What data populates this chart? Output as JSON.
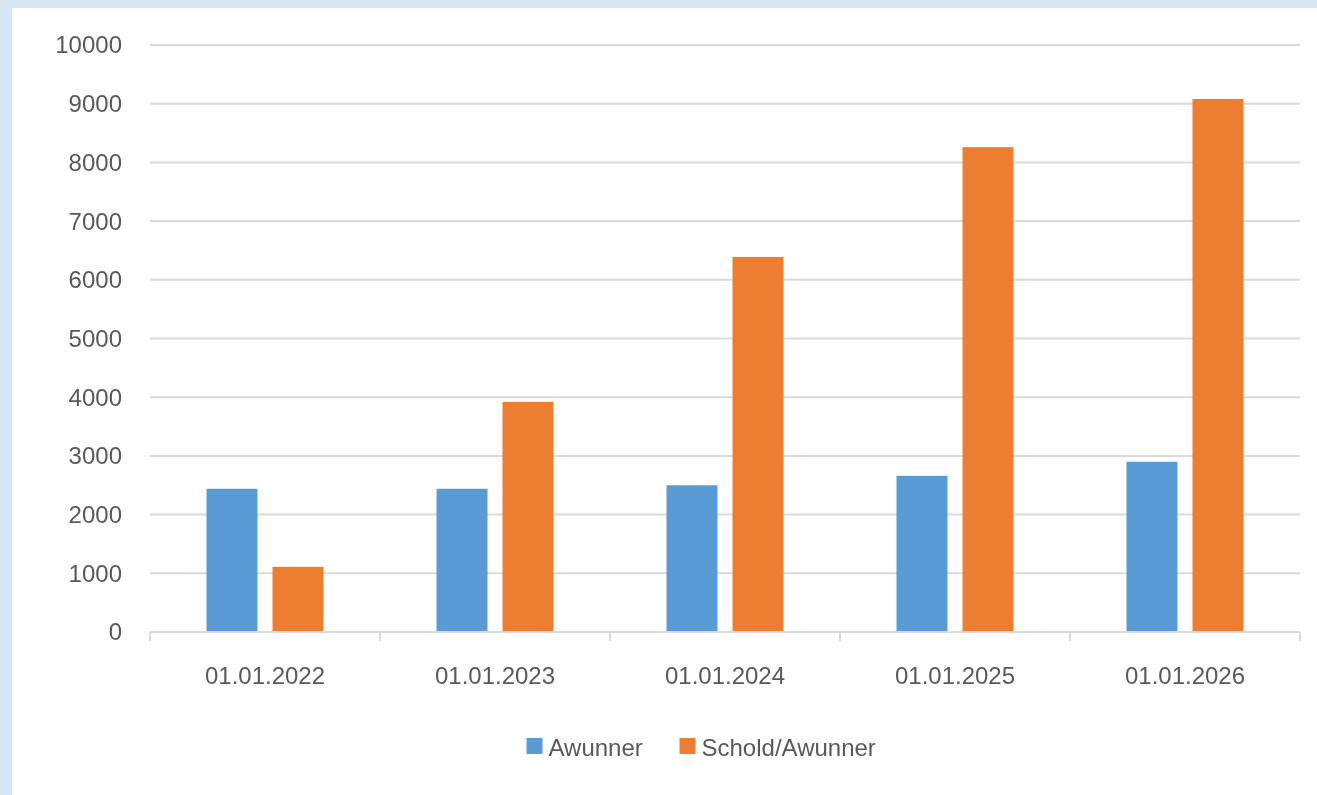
{
  "chart_data": {
    "type": "bar",
    "categories": [
      "01.01.2022",
      "01.01.2023",
      "01.01.2024",
      "01.01.2025",
      "01.01.2026"
    ],
    "series": [
      {
        "name": "Awunner",
        "color": "#5b9bd5",
        "values": [
          2440,
          2440,
          2500,
          2660,
          2900
        ]
      },
      {
        "name": "Schold/Awunner",
        "color": "#ed7d31",
        "values": [
          1110,
          3920,
          6390,
          8260,
          9080
        ]
      }
    ],
    "ylim": [
      0,
      10000
    ],
    "yticks": [
      0,
      1000,
      2000,
      3000,
      4000,
      5000,
      6000,
      7000,
      8000,
      9000,
      10000
    ],
    "grid": "y",
    "legend": "bottom"
  }
}
